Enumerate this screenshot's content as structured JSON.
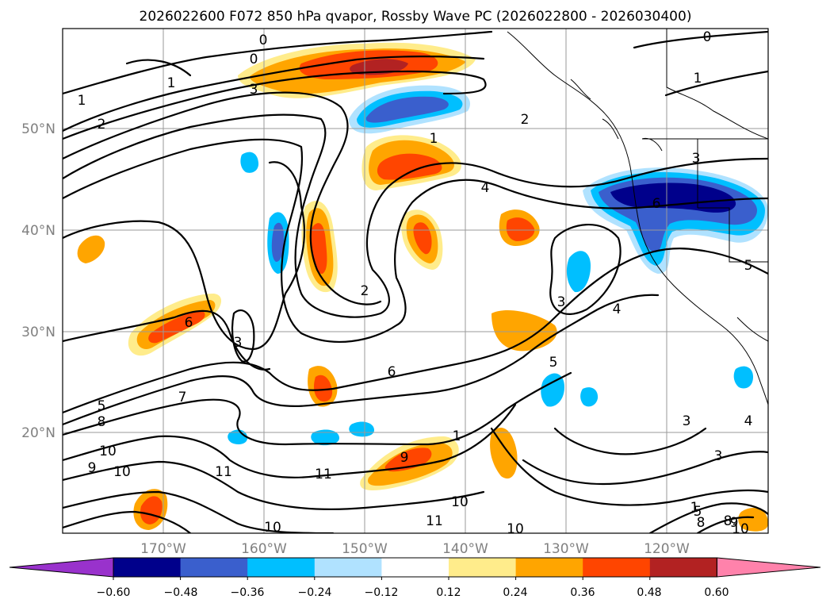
{
  "title": "2026022600 F072 850 hPa qvapor, Rossby Wave PC (2026022800 - 2026030400)",
  "lat_labels": [
    "50°N",
    "40°N",
    "30°N",
    "20°N"
  ],
  "lon_labels": [
    "170°W",
    "160°W",
    "150°W",
    "140°W",
    "130°W",
    "120°W"
  ],
  "colorbar": {
    "tick_labels": [
      "−0.60",
      "−0.48",
      "−0.36",
      "−0.24",
      "−0.12",
      "0.12",
      "0.24",
      "0.36",
      "0.48",
      "0.60"
    ],
    "colors": [
      "#9932cc",
      "#00008b",
      "#3a5fcd",
      "#00bfff",
      "#b0e2ff",
      "#ffffff",
      "#ffec8b",
      "#ffa500",
      "#ff4500",
      "#b22222",
      "#ff82ab"
    ]
  },
  "contour_labels": [
    "0",
    "0",
    "0",
    "1",
    "1",
    "1",
    "1",
    "2",
    "2",
    "2",
    "3",
    "3",
    "3",
    "3",
    "3",
    "3",
    "4",
    "4",
    "4",
    "5",
    "5",
    "5",
    "5",
    "6",
    "6",
    "6",
    "7",
    "8",
    "8",
    "9",
    "9",
    "10",
    "10",
    "10",
    "10",
    "10",
    "10",
    "11",
    "11",
    "11",
    "1",
    "1",
    "8",
    "9"
  ]
}
